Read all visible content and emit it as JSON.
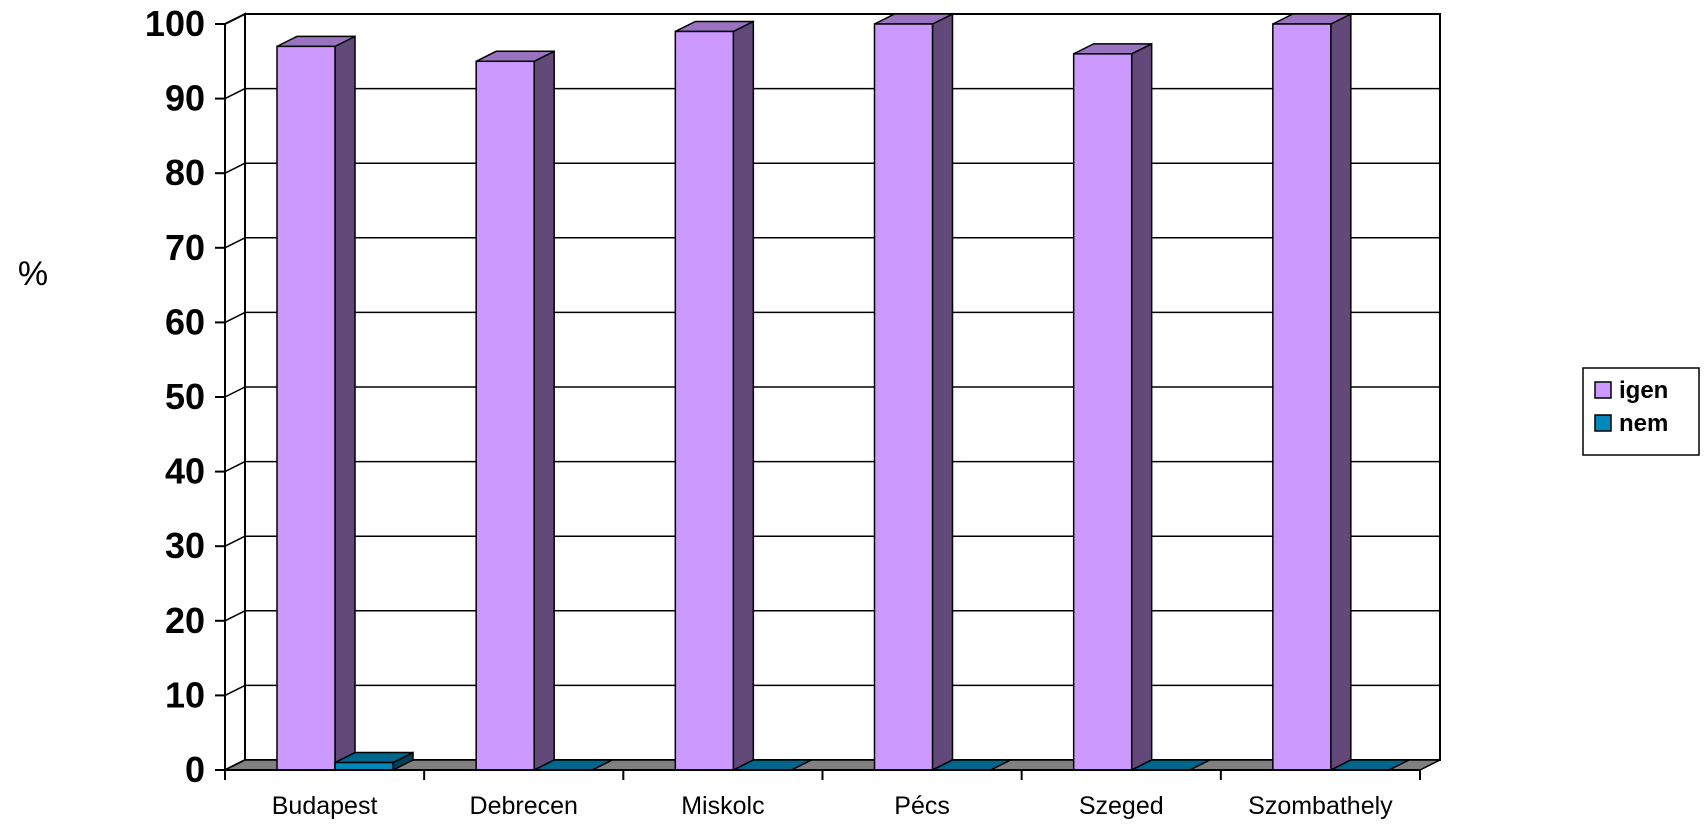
{
  "chart_data": {
    "type": "bar",
    "title": "",
    "xlabel": "",
    "ylabel": "%",
    "ylim": [
      0,
      100
    ],
    "yticks": [
      0,
      10,
      20,
      30,
      40,
      50,
      60,
      70,
      80,
      90,
      100
    ],
    "grid": true,
    "legend_position": "right",
    "categories": [
      "Budapest",
      "Debrecen",
      "Miskolc",
      "Pécs",
      "Szeged",
      "Szombathely"
    ],
    "series": [
      {
        "name": "igen",
        "values": [
          97,
          95,
          99,
          100,
          96,
          100
        ],
        "color": "#cc99ff"
      },
      {
        "name": "nem",
        "values": [
          1,
          0,
          0,
          0,
          0,
          0
        ],
        "color": "#0088bb"
      }
    ]
  }
}
